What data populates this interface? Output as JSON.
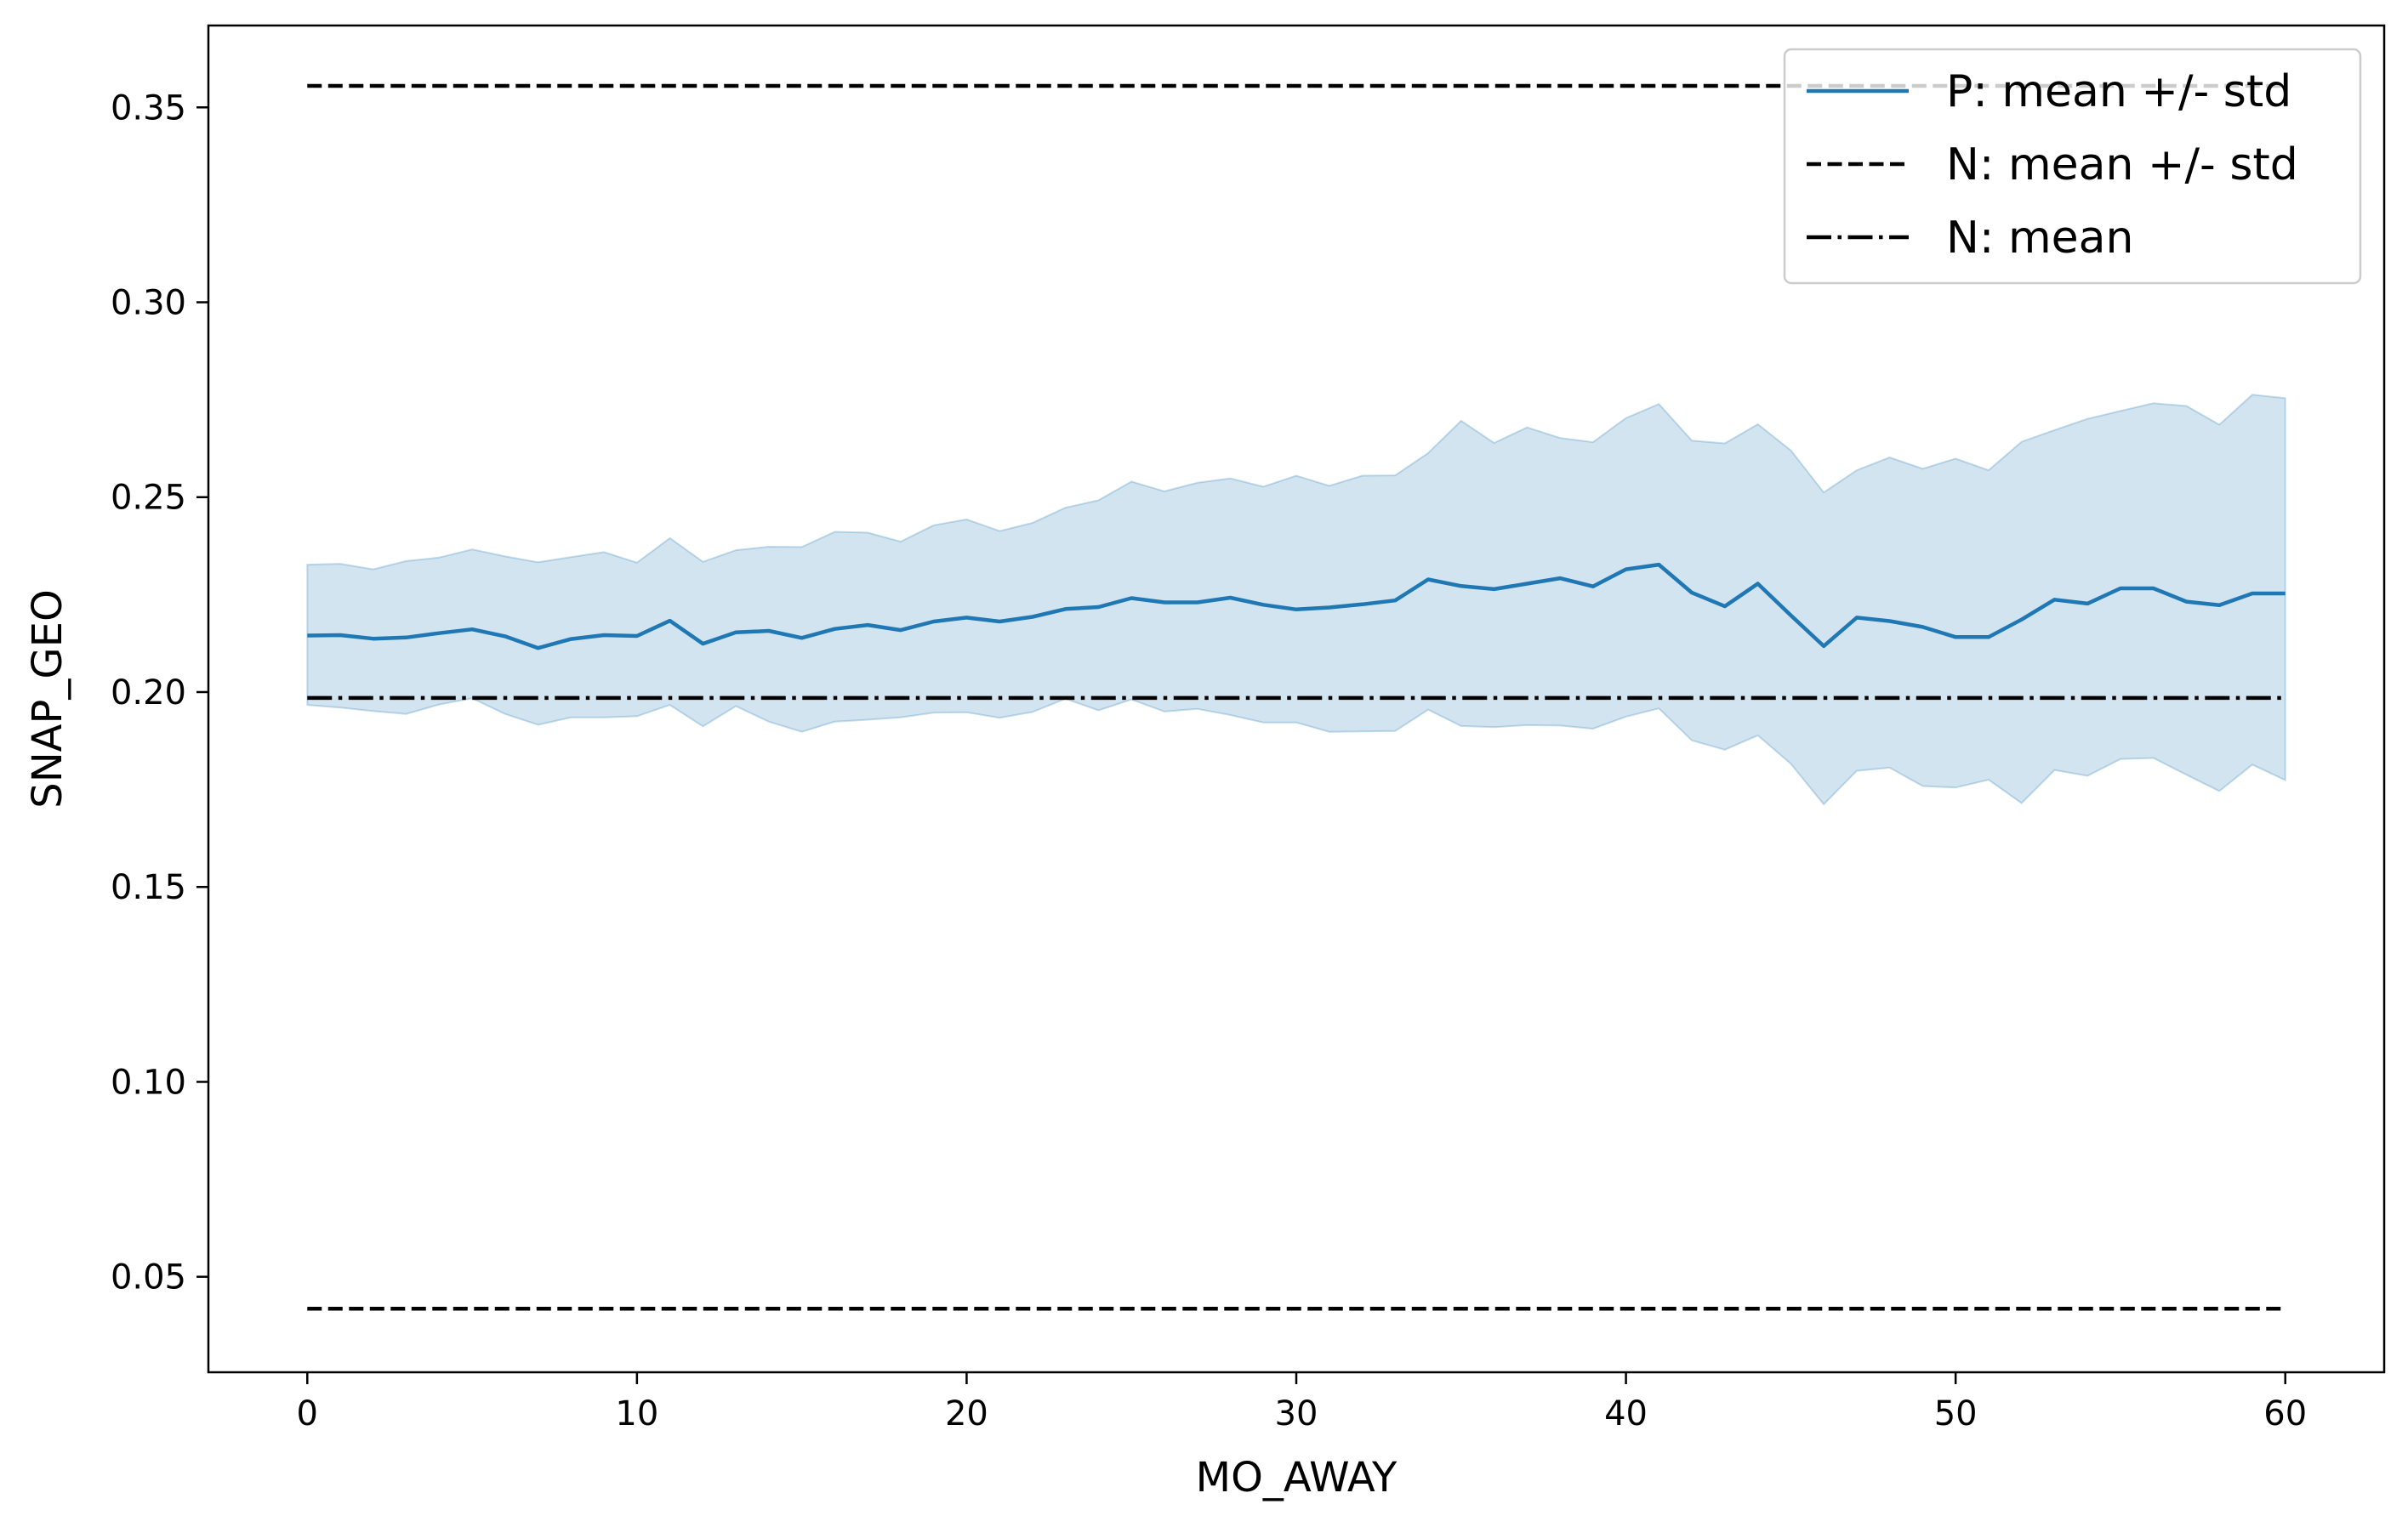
{
  "chart_data": {
    "type": "line",
    "title": "",
    "xlabel": "MO_AWAY",
    "ylabel": "SNAP_GEO",
    "xlim": [
      -3,
      63
    ],
    "ylim": [
      0.0255,
      0.371
    ],
    "x_ticks": [
      0,
      10,
      20,
      30,
      40,
      50,
      60
    ],
    "y_ticks": [
      0.05,
      0.1,
      0.15,
      0.2,
      0.25,
      0.3,
      0.35
    ],
    "x_tick_labels": [
      "0",
      "10",
      "20",
      "30",
      "40",
      "50",
      "60"
    ],
    "y_tick_labels": [
      "0.05",
      "0.10",
      "0.15",
      "0.20",
      "0.25",
      "0.30",
      "0.35"
    ],
    "grid": false,
    "legend_position": "top-right",
    "x": [
      0,
      1,
      2,
      3,
      4,
      5,
      6,
      7,
      8,
      9,
      10,
      11,
      12,
      13,
      14,
      15,
      16,
      17,
      18,
      19,
      20,
      21,
      22,
      23,
      24,
      25,
      26,
      27,
      28,
      29,
      30,
      31,
      32,
      33,
      34,
      35,
      36,
      37,
      38,
      39,
      40,
      41,
      42,
      43,
      44,
      45,
      46,
      47,
      48,
      49,
      50,
      51,
      52,
      53,
      54,
      55,
      56,
      57,
      58,
      59,
      60
    ],
    "series": [
      {
        "name": "P: mean +/- std",
        "color": "#1f77b4",
        "style": "solid",
        "values": [
          0.2145,
          0.2146,
          0.2137,
          0.214,
          0.2151,
          0.2161,
          0.2143,
          0.2113,
          0.2136,
          0.2146,
          0.2144,
          0.2183,
          0.2124,
          0.2153,
          0.2157,
          0.2139,
          0.2162,
          0.2172,
          0.2159,
          0.2181,
          0.2191,
          0.2181,
          0.2193,
          0.2213,
          0.2218,
          0.2241,
          0.223,
          0.223,
          0.2242,
          0.2224,
          0.2212,
          0.2217,
          0.2225,
          0.2235,
          0.2289,
          0.2272,
          0.2264,
          0.2278,
          0.2292,
          0.2271,
          0.2315,
          0.2327,
          0.2255,
          0.222,
          0.2278,
          0.2197,
          0.2118,
          0.2191,
          0.2182,
          0.2167,
          0.2141,
          0.2141,
          0.2186,
          0.2237,
          0.2227,
          0.2266,
          0.2266,
          0.2232,
          0.2223,
          0.2253,
          0.2253
        ],
        "upper": [
          0.2327,
          0.2329,
          0.2315,
          0.2336,
          0.2345,
          0.2366,
          0.2348,
          0.2333,
          0.2346,
          0.2359,
          0.2332,
          0.2395,
          0.2334,
          0.2364,
          0.2373,
          0.2372,
          0.2411,
          0.2409,
          0.2386,
          0.2428,
          0.2443,
          0.2413,
          0.2434,
          0.2473,
          0.2492,
          0.254,
          0.2515,
          0.2537,
          0.2548,
          0.2527,
          0.2555,
          0.2529,
          0.2555,
          0.2556,
          0.2613,
          0.2696,
          0.2639,
          0.2679,
          0.2652,
          0.2641,
          0.2703,
          0.2739,
          0.2645,
          0.2638,
          0.2687,
          0.262,
          0.2512,
          0.2569,
          0.2602,
          0.2573,
          0.2599,
          0.2569,
          0.2642,
          0.2672,
          0.2701,
          0.2721,
          0.2741,
          0.2734,
          0.2686,
          0.2763,
          0.2754
        ],
        "lower": [
          0.1967,
          0.196,
          0.1951,
          0.1944,
          0.1968,
          0.1984,
          0.1944,
          0.1916,
          0.1935,
          0.1935,
          0.1938,
          0.1967,
          0.1912,
          0.1964,
          0.1924,
          0.1898,
          0.1924,
          0.1929,
          0.1935,
          0.1947,
          0.1948,
          0.1934,
          0.1949,
          0.1983,
          0.1953,
          0.1981,
          0.195,
          0.1957,
          0.1941,
          0.1922,
          0.1922,
          0.1898,
          0.1899,
          0.19,
          0.1955,
          0.1913,
          0.191,
          0.1915,
          0.1914,
          0.1906,
          0.1937,
          0.1958,
          0.1876,
          0.1852,
          0.1889,
          0.1816,
          0.1712,
          0.1798,
          0.1806,
          0.1759,
          0.1755,
          0.1775,
          0.1715,
          0.18,
          0.1785,
          0.1828,
          0.1831,
          0.1788,
          0.1746,
          0.1814,
          0.1774
        ]
      },
      {
        "name": "N: mean +/- std",
        "color": "#000000",
        "style": "dashed",
        "upper_value": 0.3555,
        "lower_value": 0.0418
      },
      {
        "name": "N: mean",
        "color": "#000000",
        "style": "dashdot",
        "value": 0.1985
      }
    ],
    "band_color": "#1f77b4",
    "band_opacity": 0.2
  }
}
